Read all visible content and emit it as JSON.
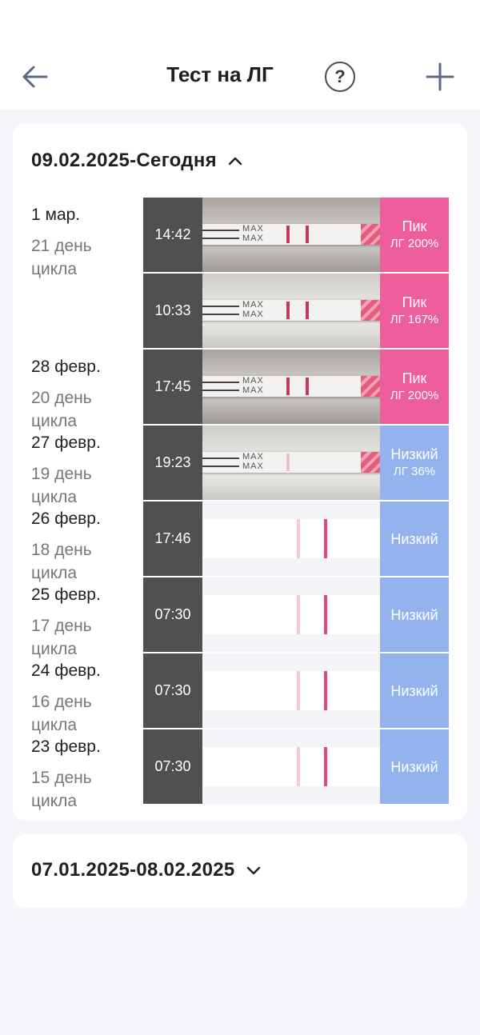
{
  "header": {
    "title": "Тест на ЛГ",
    "help_label": "?"
  },
  "cycles": [
    {
      "range": "09.02.2025-Сегодня",
      "expanded": true,
      "entries": [
        {
          "date": "1 мар.",
          "cycle_day": "21 день цикла",
          "time": "14:42",
          "result": "Пик",
          "lh": "ЛГ 200%",
          "color": "#ee5d9c",
          "view": "photo"
        },
        {
          "date": "",
          "cycle_day": "",
          "time": "10:33",
          "result": "Пик",
          "lh": "ЛГ 167%",
          "color": "#ee5d9c",
          "view": "photo"
        },
        {
          "date": "28 февр.",
          "cycle_day": "20 день цикла",
          "time": "17:45",
          "result": "Пик",
          "lh": "ЛГ 200%",
          "color": "#ee5d9c",
          "view": "photo"
        },
        {
          "date": "27 февр.",
          "cycle_day": "19 день цикла",
          "time": "19:23",
          "result": "Низкий",
          "lh": "ЛГ 36%",
          "color": "#94b3ee",
          "view": "photo"
        },
        {
          "date": "26 февр.",
          "cycle_day": "18 день цикла",
          "time": "17:46",
          "result": "Низкий",
          "lh": "",
          "color": "#94b3ee",
          "view": "diagram"
        },
        {
          "date": "25 февр.",
          "cycle_day": "17 день цикла",
          "time": "07:30",
          "result": "Низкий",
          "lh": "",
          "color": "#94b3ee",
          "view": "diagram"
        },
        {
          "date": "24 февр.",
          "cycle_day": "16 день цикла",
          "time": "07:30",
          "result": "Низкий",
          "lh": "",
          "color": "#94b3ee",
          "view": "diagram"
        },
        {
          "date": "23 февр.",
          "cycle_day": "15 день цикла",
          "time": "07:30",
          "result": "Низкий",
          "lh": "",
          "color": "#94b3ee",
          "view": "diagram"
        }
      ]
    },
    {
      "range": "07.01.2025-08.02.2025",
      "expanded": false,
      "entries": []
    }
  ],
  "colors": {
    "peak": "#ee5d9c",
    "low": "#94b3ee",
    "time_bg": "#505050"
  },
  "icons": {
    "back": "arrow-left-icon",
    "help": "question-circle-icon",
    "add": "plus-icon",
    "collapse": "chevron-up-icon",
    "expand": "chevron-down-icon"
  }
}
